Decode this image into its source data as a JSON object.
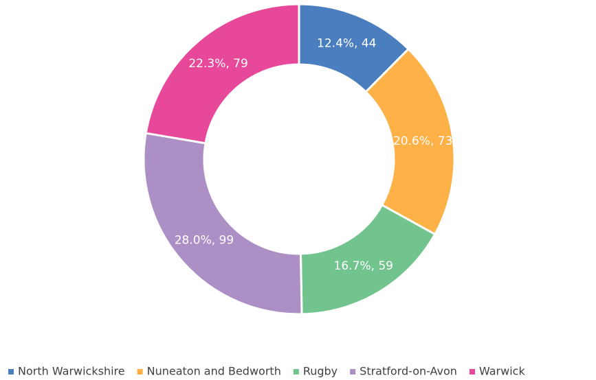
{
  "chart_data": {
    "type": "donut",
    "categories": [
      "North Warwickshire",
      "Nuneaton and Bedworth",
      "Rugby",
      "Stratford-on-Avon",
      "Warwick"
    ],
    "values": [
      44,
      73,
      59,
      99,
      79
    ],
    "value_labels": [
      "12.4%, 44",
      "20.6%, 73",
      "16.7%, 59",
      "28.0%, 99",
      "22.3%, 79"
    ],
    "colors": [
      "#4a7ebf",
      "#fdb147",
      "#72c48e",
      "#ab8fc5",
      "#e8489a"
    ],
    "legend": "bottom"
  }
}
